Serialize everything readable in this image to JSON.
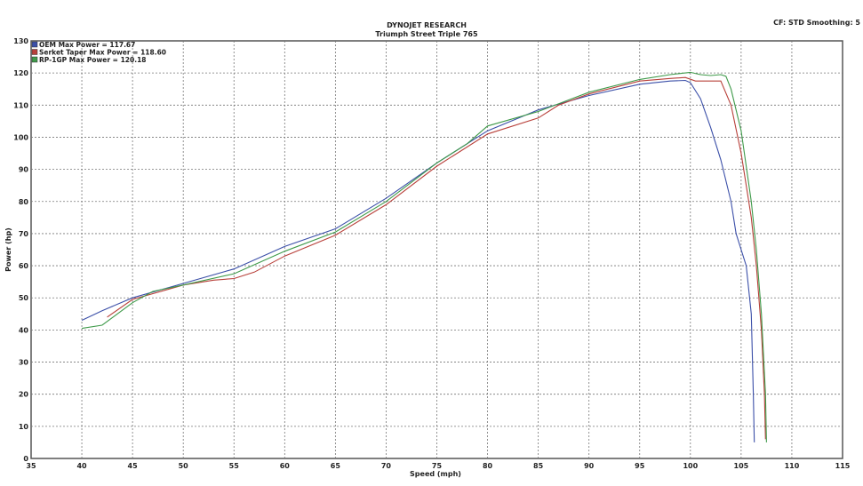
{
  "header": {
    "title": "DYNOJET RESEARCH",
    "subtitle": "Triumph Street Triple 765",
    "settings": "CF: STD  Smoothing: 5"
  },
  "chart_data": {
    "type": "line",
    "title": "DYNOJET RESEARCH",
    "subtitle": "Triumph Street Triple 765",
    "xlabel": "Speed (mph)",
    "ylabel": "Power (hp)",
    "xlim": [
      35,
      115
    ],
    "ylim": [
      0,
      130
    ],
    "xticks": [
      35,
      40,
      45,
      50,
      55,
      60,
      65,
      70,
      75,
      80,
      85,
      90,
      95,
      100,
      105,
      110,
      115
    ],
    "yticks": [
      0,
      10,
      20,
      30,
      40,
      50,
      60,
      70,
      80,
      90,
      100,
      110,
      120,
      130
    ],
    "grid": true,
    "legend_position": "top-left",
    "series": [
      {
        "name": "OEM Max Power = 117.67",
        "color": "#3b4fa8",
        "x": [
          40,
          42,
          45,
          50,
          55,
          60,
          65,
          70,
          75,
          80,
          85,
          90,
          95,
          98,
          99.5,
          100,
          101,
          102,
          103,
          104,
          104.5,
          105,
          105.5,
          106,
          106.2,
          106.3
        ],
        "y": [
          43,
          46,
          50,
          54.5,
          59,
          66,
          71.5,
          81,
          92,
          102,
          108.5,
          113,
          116.5,
          117.5,
          117.7,
          117,
          112,
          103,
          93,
          80,
          70,
          65,
          60,
          45,
          20,
          5
        ]
      },
      {
        "name": "Serket Taper Max Power = 118.60",
        "color": "#b8403a",
        "x": [
          42.5,
          45,
          50,
          53,
          55,
          57,
          60,
          65,
          70,
          75,
          80,
          85,
          87,
          90,
          95,
          98,
          99.5,
          100.5,
          102,
          103,
          104,
          105,
          106,
          106.5,
          107,
          107.3,
          107.4
        ],
        "y": [
          44,
          49.5,
          54,
          55.5,
          56,
          58,
          63,
          69.5,
          79,
          91,
          101,
          106,
          110,
          113.5,
          117.5,
          118.3,
          118.6,
          117.5,
          117.5,
          117.5,
          110,
          95,
          75,
          60,
          40,
          20,
          6
        ]
      },
      {
        "name": "RP-1GP Max Power = 120.18",
        "color": "#3f9a4a",
        "x": [
          40,
          42,
          45,
          47,
          50,
          55,
          60,
          65,
          70,
          75,
          78,
          80,
          85,
          90,
          95,
          98,
          100,
          101,
          102,
          103,
          103.5,
          104,
          105,
          106,
          106.5,
          107,
          107.4,
          107.5
        ],
        "y": [
          40.5,
          41.5,
          48.5,
          52,
          54,
          57.5,
          64.5,
          70.5,
          80,
          92,
          98,
          103.5,
          108,
          114,
          118,
          119.5,
          120.2,
          119.5,
          119.2,
          119.5,
          119,
          115,
          102,
          80,
          65,
          45,
          20,
          5
        ]
      }
    ]
  }
}
